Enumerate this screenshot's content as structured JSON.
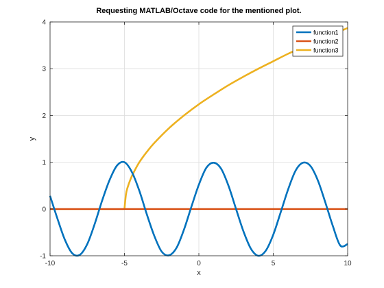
{
  "chart_data": {
    "type": "line",
    "title": "Requesting MATLAB/Octave code for the mentioned plot.",
    "xlabel": "x",
    "ylabel": "y",
    "xlim": [
      -10,
      10
    ],
    "ylim": [
      -1,
      4
    ],
    "xticks": [
      -10,
      -5,
      0,
      5,
      10
    ],
    "yticks": [
      -1,
      0,
      1,
      2,
      3,
      4
    ],
    "grid": true,
    "legend_position": "top-right",
    "series": [
      {
        "name": "function1",
        "color": "#0072BD",
        "x": [
          -10,
          -9.5,
          -9,
          -8.5,
          -8,
          -7.5,
          -7,
          -6.5,
          -6,
          -5.5,
          -5,
          -4.5,
          -4,
          -3.5,
          -3,
          -2.5,
          -2,
          -1.5,
          -1,
          -0.5,
          0,
          0.5,
          1,
          1.5,
          2,
          2.5,
          3,
          3.5,
          4,
          4.5,
          5,
          5.5,
          6,
          6.5,
          7,
          7.5,
          8,
          8.5,
          9,
          9.5,
          10
        ],
        "y": [
          0.28,
          -0.21,
          -0.66,
          -0.95,
          -0.98,
          -0.75,
          -0.32,
          0.18,
          0.62,
          0.93,
          1.0,
          0.79,
          0.39,
          -0.11,
          -0.57,
          -0.91,
          -0.99,
          -0.83,
          -0.44,
          0.05,
          0.52,
          0.88,
          0.99,
          0.86,
          0.49,
          0.0,
          -0.48,
          -0.85,
          -1.0,
          -0.89,
          -0.55,
          -0.07,
          0.42,
          0.82,
          0.99,
          0.92,
          0.61,
          0.14,
          -0.36,
          -0.78,
          -0.75
        ]
      },
      {
        "name": "function2",
        "color": "#D95319",
        "x": [
          -10,
          10
        ],
        "y": [
          0,
          0
        ]
      },
      {
        "name": "function3",
        "color": "#EDB120",
        "x": [
          -10,
          -5,
          -4.9,
          -4.8,
          -4.6,
          -4.4,
          -4,
          -3.5,
          -3,
          -2,
          -1,
          0,
          1,
          2,
          3,
          4,
          5,
          6,
          7,
          8,
          9,
          10
        ],
        "y": [
          0,
          0,
          0.31,
          0.45,
          0.63,
          0.77,
          1.0,
          1.22,
          1.41,
          1.73,
          2.0,
          2.24,
          2.45,
          2.65,
          2.83,
          3.0,
          3.16,
          3.32,
          3.46,
          3.61,
          3.74,
          3.87
        ]
      }
    ]
  }
}
